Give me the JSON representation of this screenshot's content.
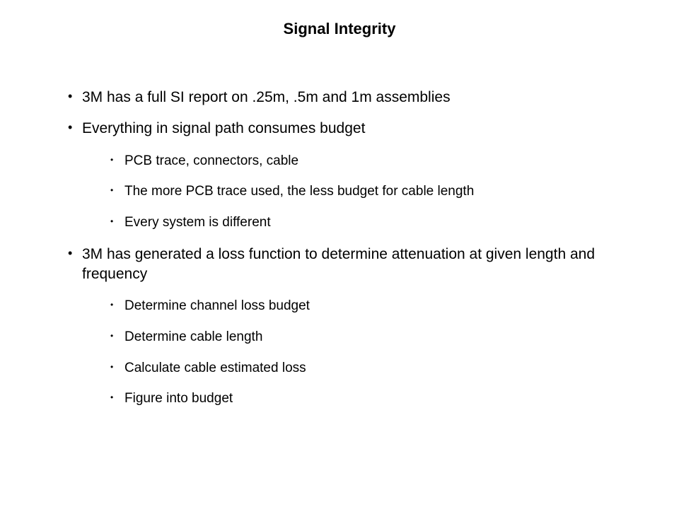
{
  "title": "Signal Integrity",
  "bullets": {
    "b1": "3M has a full SI report on .25m, .5m and 1m assemblies",
    "b2": "Everything in signal path consumes budget",
    "b2_sub": {
      "s1": "PCB trace, connectors, cable",
      "s2": "The more PCB trace used, the less budget for cable length",
      "s3": "Every system is different"
    },
    "b3": "3M has generated a loss function to determine attenuation at given length and frequency",
    "b3_sub": {
      "s1": "Determine channel loss budget",
      "s2": "Determine cable length",
      "s3": "Calculate cable estimated loss",
      "s4": "Figure into budget"
    }
  },
  "style": {
    "background_color": "#ffffff",
    "text_color": "#000000",
    "title_fontsize": 22,
    "title_fontweight": "bold",
    "outer_bullet_fontsize": 21,
    "inner_bullet_fontsize": 19,
    "font_family": "Verdana, Geneva, sans-serif"
  }
}
